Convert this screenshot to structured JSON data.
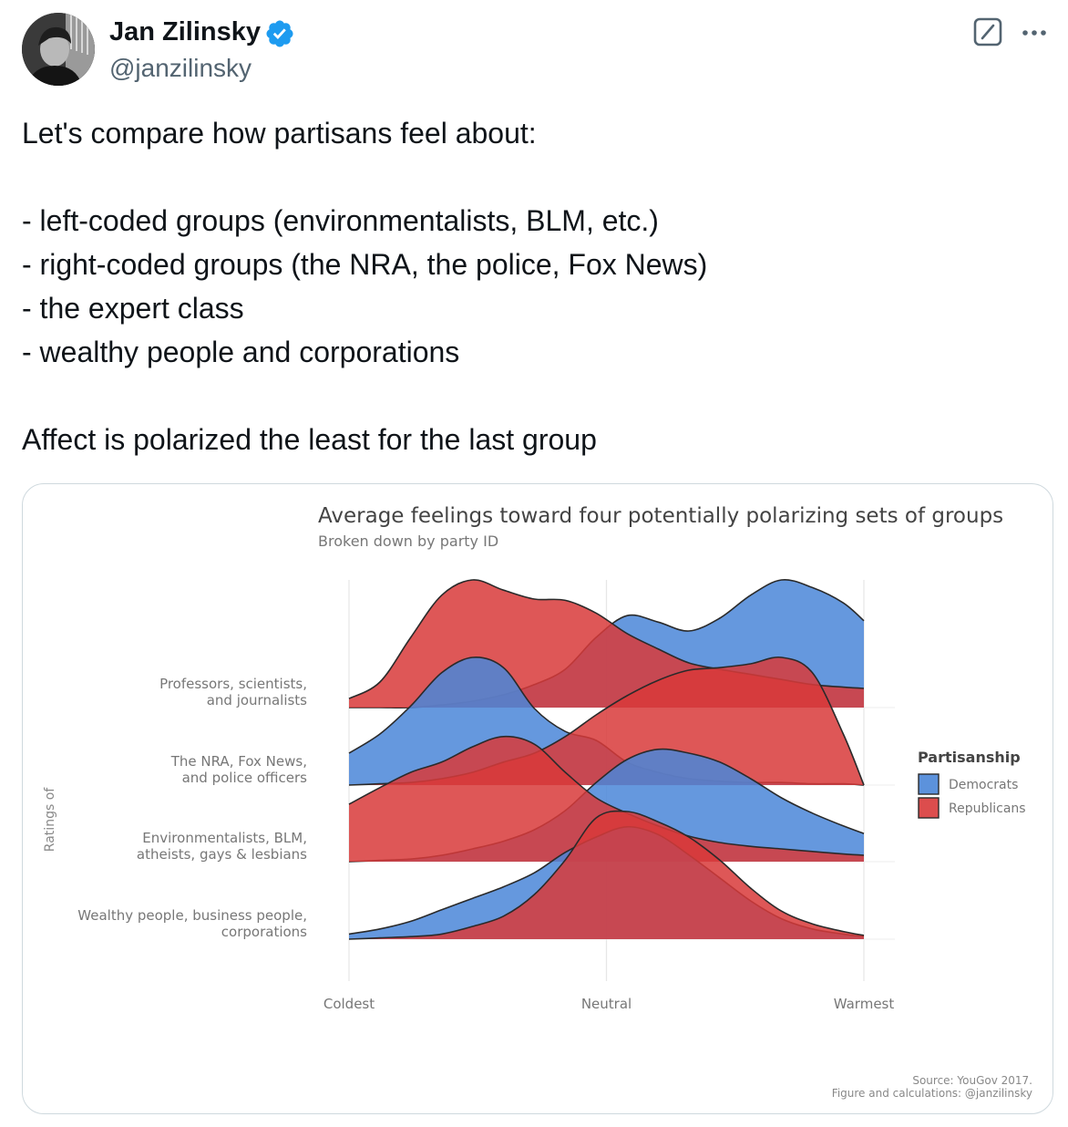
{
  "post": {
    "author_name": "Jan Zilinsky",
    "author_handle": "@janzilinsky",
    "text_lines": [
      "Let's compare how partisans feel about:",
      "",
      "- left-coded groups (environmentalists, BLM, etc.)",
      "- right-coded groups (the NRA, the police, Fox News)",
      "- the expert class",
      "- wealthy people and corporations",
      "",
      "Affect is polarized the least for the last group"
    ]
  },
  "icons": {
    "avatar": "avatar-photo",
    "verified": "verified-badge-icon",
    "grok": "grok-icon",
    "more": "more-icon"
  },
  "colors": {
    "democrats": "#4a86d8",
    "republicans": "#d83a3a",
    "verified_blue": "#1d9bf0"
  },
  "chart_data": {
    "type": "ridgeline",
    "title": "Average feelings toward four potentially polarizing sets of groups",
    "subtitle": "Broken down by party ID",
    "ylabel": "Ratings of",
    "x_ticks": [
      "Coldest",
      "Neutral",
      "Warmest"
    ],
    "x_range": [
      0,
      100
    ],
    "legend": {
      "title": "Partisanship",
      "position": "right",
      "entries": [
        "Democrats",
        "Republicans"
      ]
    },
    "categories": [
      "Professors, scientists,\nand journalists",
      "The NRA, Fox News,\nand police officers",
      "Environmentalists, BLM,\natheists, gays & lesbians",
      "Wealthy people, business people,\ncorporations"
    ],
    "x": [
      0,
      6,
      12,
      18,
      24,
      30,
      36,
      42,
      48,
      54,
      60,
      66,
      72,
      78,
      84,
      90,
      96,
      100
    ],
    "series": [
      {
        "name": "Democrats",
        "densities": [
          [
            0,
            0,
            0,
            0.02,
            0.05,
            0.1,
            0.18,
            0.3,
            0.55,
            0.72,
            0.67,
            0.6,
            0.7,
            0.88,
            1.0,
            0.94,
            0.82,
            0.68
          ],
          [
            0.25,
            0.4,
            0.62,
            0.88,
            1.0,
            0.92,
            0.6,
            0.42,
            0.35,
            0.18,
            0.1,
            0.05,
            0.03,
            0.02,
            0.02,
            0.01,
            0.01,
            0.0
          ],
          [
            0.0,
            0.01,
            0.02,
            0.05,
            0.1,
            0.16,
            0.25,
            0.4,
            0.62,
            0.8,
            0.88,
            0.85,
            0.78,
            0.65,
            0.5,
            0.38,
            0.28,
            0.22
          ],
          [
            0.04,
            0.08,
            0.14,
            0.23,
            0.32,
            0.41,
            0.52,
            0.68,
            0.8,
            0.88,
            0.82,
            0.66,
            0.48,
            0.3,
            0.16,
            0.08,
            0.04,
            0.02
          ]
        ]
      },
      {
        "name": "Republicans",
        "densities": [
          [
            0.07,
            0.2,
            0.55,
            0.88,
            1.0,
            0.92,
            0.85,
            0.84,
            0.74,
            0.58,
            0.46,
            0.35,
            0.3,
            0.26,
            0.22,
            0.18,
            0.16,
            0.15
          ],
          [
            0.0,
            0.01,
            0.02,
            0.05,
            0.1,
            0.18,
            0.25,
            0.38,
            0.55,
            0.7,
            0.82,
            0.9,
            0.92,
            0.95,
            1.0,
            0.88,
            0.4,
            0.0
          ],
          [
            0.45,
            0.58,
            0.7,
            0.78,
            0.9,
            0.98,
            0.92,
            0.7,
            0.5,
            0.38,
            0.28,
            0.2,
            0.15,
            0.12,
            0.1,
            0.08,
            0.06,
            0.05
          ],
          [
            0.0,
            0.01,
            0.02,
            0.04,
            0.1,
            0.18,
            0.35,
            0.62,
            0.95,
            1.0,
            0.92,
            0.8,
            0.62,
            0.4,
            0.22,
            0.12,
            0.06,
            0.03
          ]
        ]
      }
    ],
    "source_lines": [
      "Source: YouGov 2017.",
      "Figure and calculations: @janzilinsky"
    ]
  }
}
